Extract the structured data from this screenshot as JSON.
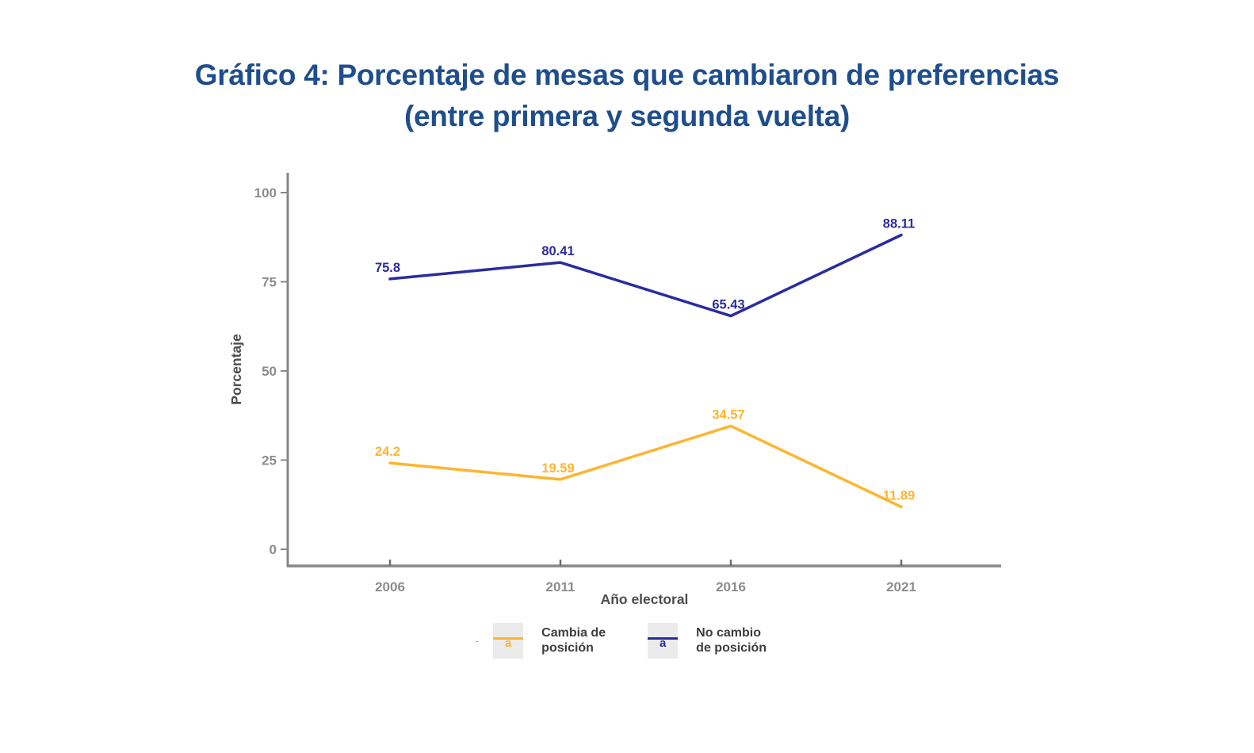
{
  "page": {
    "background": "#ffffff"
  },
  "title": {
    "line1": "Gráfico 4: Porcentaje de mesas que cambiaron de preferencias",
    "line2": "(entre primera y segunda vuelta)",
    "color": "#1F4E8C"
  },
  "chart_data": {
    "type": "line",
    "x": [
      "2006",
      "2011",
      "2016",
      "2021"
    ],
    "series": [
      {
        "name": "Cambia de posición",
        "color": "#FDB52F",
        "values": [
          24.2,
          19.59,
          34.57,
          11.89
        ],
        "point_labels": [
          "24.2",
          "19.59",
          "34.57",
          "11.89"
        ]
      },
      {
        "name": "No cambio de posición",
        "color": "#2B2BA0",
        "values": [
          75.8,
          80.41,
          65.43,
          88.11
        ],
        "point_labels": [
          "75.8",
          "80.41",
          "65.43",
          "88.11"
        ]
      }
    ],
    "xlabel": "Año electoral",
    "ylabel": "Porcentaje",
    "ylim": [
      0,
      100
    ],
    "yticks": [
      0,
      25,
      50,
      75,
      100
    ],
    "grid": false,
    "legend_position": "bottom",
    "axis_line_color": "#878787",
    "tick_label_color": "#8C8C8C",
    "axis_title_color": "#4D4D4D"
  },
  "legend": {
    "prefix_dash": "-",
    "key_bg": "#EBEBEB",
    "items": [
      {
        "label": "Cambia de posición",
        "glyph": "a",
        "color": "#FDB52F"
      },
      {
        "label": "No cambio de posición",
        "glyph": "a",
        "color": "#2B2BA0"
      }
    ]
  }
}
